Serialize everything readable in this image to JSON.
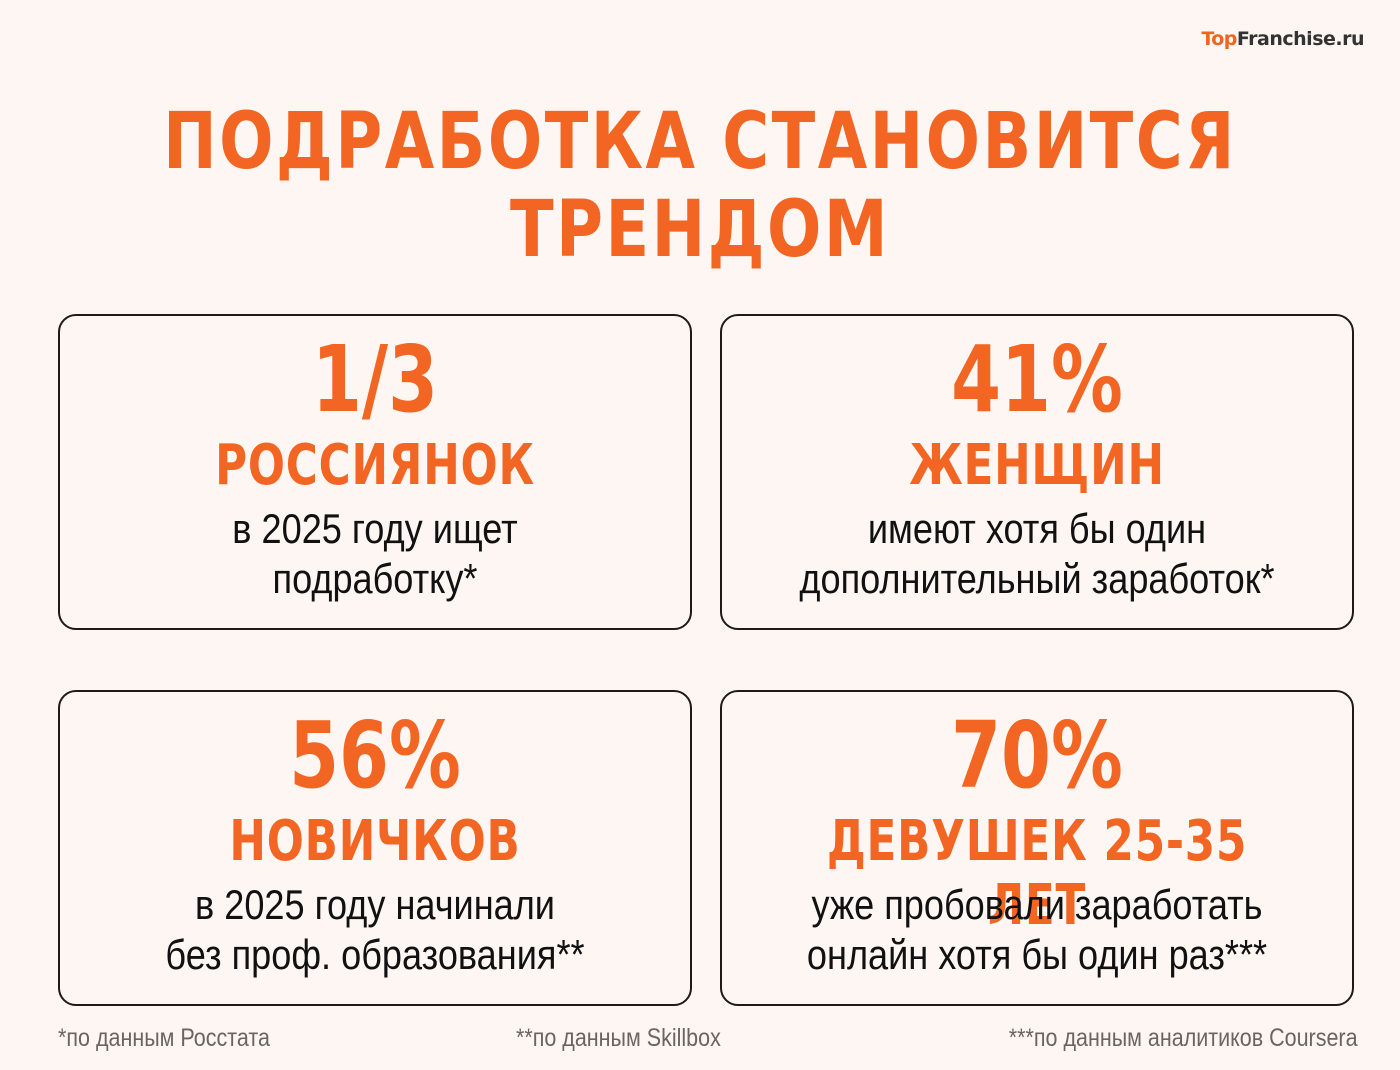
{
  "logo": {
    "part1": "Top",
    "part2": "Franchise.ru",
    "colors": {
      "accent": "#f0641e",
      "dark": "#333333"
    }
  },
  "title": {
    "line1": "ПОДРАБОТКА СТАНОВИТСЯ",
    "line2": "ТРЕНДОМ"
  },
  "colors": {
    "accent": "#f26522",
    "background": "#fdf6f2",
    "border": "#1f1a17",
    "text": "#111111",
    "footnote": "#6b6561"
  },
  "cards": [
    {
      "value": "1/3",
      "subject": "РОССИЯНОК",
      "desc_line1": "в 2025 году ищет",
      "desc_line2": "подработку*"
    },
    {
      "value": "41%",
      "subject": "ЖЕНЩИН",
      "desc_line1": "имеют хотя бы один",
      "desc_line2": "дополнительный заработок*"
    },
    {
      "value": "56%",
      "subject": "НОВИЧКОВ",
      "desc_line1": "в 2025 году начинали",
      "desc_line2": "без проф. образования**"
    },
    {
      "value": "70%",
      "subject": "ДЕВУШЕК 25-35 ЛЕТ",
      "desc_line1": "уже пробовали заработать",
      "desc_line2": "онлайн хотя бы один раз***"
    }
  ],
  "footnotes": [
    "*по данным Росстата",
    "**по данным Skillbox",
    "***по данным аналитиков Coursera"
  ]
}
